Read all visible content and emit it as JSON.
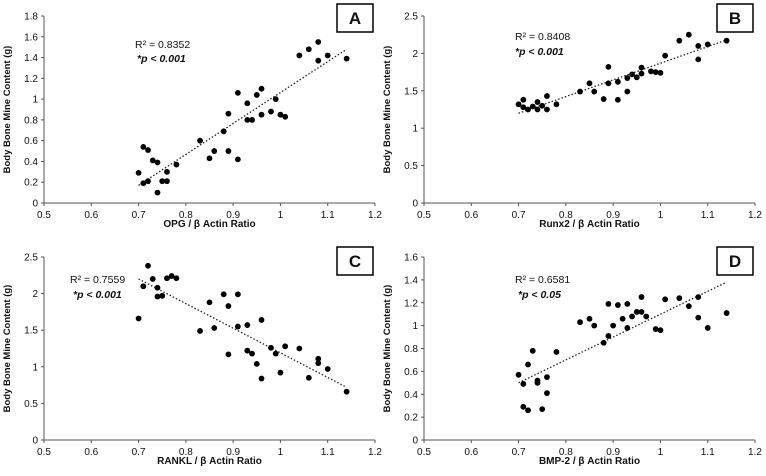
{
  "chart_data": [
    {
      "type": "scatter",
      "panel_label": "A",
      "xlabel": "OPG / β Actin Ratio",
      "ylabel": "Body Bone Mine Content (g)",
      "xlim": [
        0.5,
        1.2
      ],
      "ylim": [
        0,
        1.8
      ],
      "x_ticks": [
        "0.5",
        "0.6",
        "0.7",
        "0.8",
        "0.9",
        "1",
        "1.1",
        "1.2"
      ],
      "y_ticks": [
        "0",
        "0.2",
        "0.4",
        "0.6",
        "0.8",
        "1",
        "1.2",
        "1.4",
        "1.6",
        "1.8"
      ],
      "r_squared": "R² = 0.8352",
      "p_value": "*p < 0.001",
      "trendline": {
        "x": [
          0.7,
          1.14
        ],
        "y": [
          0.17,
          1.48
        ]
      },
      "points": [
        [
          0.7,
          0.29
        ],
        [
          0.71,
          0.54
        ],
        [
          0.71,
          0.19
        ],
        [
          0.72,
          0.51
        ],
        [
          0.72,
          0.21
        ],
        [
          0.73,
          0.41
        ],
        [
          0.74,
          0.39
        ],
        [
          0.74,
          0.1
        ],
        [
          0.75,
          0.21
        ],
        [
          0.76,
          0.3
        ],
        [
          0.76,
          0.21
        ],
        [
          0.78,
          0.37
        ],
        [
          0.83,
          0.6
        ],
        [
          0.85,
          0.43
        ],
        [
          0.86,
          0.5
        ],
        [
          0.88,
          0.69
        ],
        [
          0.89,
          0.86
        ],
        [
          0.89,
          0.5
        ],
        [
          0.91,
          0.42
        ],
        [
          0.91,
          1.06
        ],
        [
          0.93,
          0.8
        ],
        [
          0.93,
          0.96
        ],
        [
          0.94,
          0.8
        ],
        [
          0.95,
          1.04
        ],
        [
          0.96,
          0.85
        ],
        [
          0.96,
          1.1
        ],
        [
          0.98,
          0.88
        ],
        [
          0.99,
          1.0
        ],
        [
          1.0,
          0.85
        ],
        [
          1.01,
          0.83
        ],
        [
          1.04,
          1.42
        ],
        [
          1.06,
          1.48
        ],
        [
          1.08,
          1.55
        ],
        [
          1.08,
          1.37
        ],
        [
          1.1,
          1.42
        ],
        [
          1.14,
          1.39
        ]
      ]
    },
    {
      "type": "scatter",
      "panel_label": "B",
      "xlabel": "Runx2 / β Actin Ratio",
      "ylabel": "Body Bone Mine Content (g)",
      "xlim": [
        0.5,
        1.2
      ],
      "ylim": [
        0,
        2.5
      ],
      "x_ticks": [
        "0.5",
        "0.6",
        "0.7",
        "0.8",
        "0.9",
        "1",
        "1.1",
        "1.2"
      ],
      "y_ticks": [
        "0",
        "0.5",
        "1",
        "1.5",
        "2",
        "2.5"
      ],
      "r_squared": "R² = 0.8408",
      "p_value": "*p < 0.001",
      "trendline": {
        "x": [
          0.7,
          1.14
        ],
        "y": [
          1.2,
          2.18
        ]
      },
      "points": [
        [
          0.7,
          1.32
        ],
        [
          0.71,
          1.38
        ],
        [
          0.71,
          1.28
        ],
        [
          0.72,
          1.25
        ],
        [
          0.73,
          1.29
        ],
        [
          0.74,
          1.25
        ],
        [
          0.74,
          1.35
        ],
        [
          0.75,
          1.3
        ],
        [
          0.76,
          1.25
        ],
        [
          0.76,
          1.43
        ],
        [
          0.78,
          1.32
        ],
        [
          0.83,
          1.49
        ],
        [
          0.85,
          1.6
        ],
        [
          0.86,
          1.49
        ],
        [
          0.88,
          1.39
        ],
        [
          0.89,
          1.82
        ],
        [
          0.89,
          1.6
        ],
        [
          0.91,
          1.38
        ],
        [
          0.91,
          1.62
        ],
        [
          0.93,
          1.49
        ],
        [
          0.93,
          1.67
        ],
        [
          0.94,
          1.72
        ],
        [
          0.95,
          1.68
        ],
        [
          0.96,
          1.81
        ],
        [
          0.96,
          1.73
        ],
        [
          0.98,
          1.76
        ],
        [
          0.99,
          1.75
        ],
        [
          1.0,
          1.74
        ],
        [
          1.01,
          1.97
        ],
        [
          1.04,
          2.17
        ],
        [
          1.06,
          2.25
        ],
        [
          1.08,
          2.1
        ],
        [
          1.08,
          1.92
        ],
        [
          1.1,
          2.12
        ],
        [
          1.14,
          2.17
        ]
      ]
    },
    {
      "type": "scatter",
      "panel_label": "C",
      "xlabel": "RANKL / β Actin Ratio",
      "ylabel": "Body Bone Mine Content (g)",
      "xlim": [
        0.5,
        1.2
      ],
      "ylim": [
        0,
        2.5
      ],
      "x_ticks": [
        "0.5",
        "0.6",
        "0.7",
        "0.8",
        "0.9",
        "1",
        "1.1",
        "1.2"
      ],
      "y_ticks": [
        "0",
        "0.5",
        "1",
        "1.5",
        "2",
        "2.5"
      ],
      "r_squared": "R² = 0.7559",
      "p_value": "*p < 0.001",
      "trendline": {
        "x": [
          0.7,
          1.14
        ],
        "y": [
          2.2,
          0.72
        ]
      },
      "points": [
        [
          0.7,
          1.66
        ],
        [
          0.71,
          2.1
        ],
        [
          0.72,
          2.38
        ],
        [
          0.73,
          2.2
        ],
        [
          0.74,
          1.96
        ],
        [
          0.74,
          2.08
        ],
        [
          0.75,
          1.97
        ],
        [
          0.76,
          2.21
        ],
        [
          0.77,
          2.24
        ],
        [
          0.78,
          2.21
        ],
        [
          0.83,
          1.49
        ],
        [
          0.85,
          1.88
        ],
        [
          0.86,
          1.53
        ],
        [
          0.88,
          1.99
        ],
        [
          0.89,
          1.17
        ],
        [
          0.89,
          1.83
        ],
        [
          0.91,
          1.55
        ],
        [
          0.91,
          1.99
        ],
        [
          0.93,
          1.22
        ],
        [
          0.93,
          1.57
        ],
        [
          0.94,
          1.18
        ],
        [
          0.95,
          1.04
        ],
        [
          0.96,
          1.64
        ],
        [
          0.96,
          0.84
        ],
        [
          0.98,
          1.26
        ],
        [
          0.99,
          1.18
        ],
        [
          1.0,
          0.92
        ],
        [
          1.01,
          1.28
        ],
        [
          1.04,
          1.25
        ],
        [
          1.06,
          0.85
        ],
        [
          1.08,
          1.11
        ],
        [
          1.08,
          1.05
        ],
        [
          1.1,
          0.97
        ],
        [
          1.14,
          0.66
        ]
      ]
    },
    {
      "type": "scatter",
      "panel_label": "D",
      "xlabel": "BMP-2 / β Actin Ratio",
      "ylabel": "Body Bone Mine Content (g)",
      "xlim": [
        0.5,
        1.2
      ],
      "ylim": [
        0,
        1.6
      ],
      "x_ticks": [
        "0.5",
        "0.6",
        "0.7",
        "0.8",
        "0.9",
        "1",
        "1.1",
        "1.2"
      ],
      "y_ticks": [
        "0",
        "0.2",
        "0.4",
        "0.6",
        "0.8",
        "1",
        "1.2",
        "1.4",
        "1.6"
      ],
      "r_squared": "R² = 0.6581",
      "p_value": "*p < 0.05",
      "trendline": {
        "x": [
          0.7,
          1.14
        ],
        "y": [
          0.5,
          1.38
        ]
      },
      "points": [
        [
          0.7,
          0.57
        ],
        [
          0.71,
          0.49
        ],
        [
          0.71,
          0.29
        ],
        [
          0.72,
          0.66
        ],
        [
          0.72,
          0.26
        ],
        [
          0.73,
          0.78
        ],
        [
          0.74,
          0.52
        ],
        [
          0.74,
          0.5
        ],
        [
          0.75,
          0.27
        ],
        [
          0.76,
          0.55
        ],
        [
          0.76,
          0.41
        ],
        [
          0.78,
          0.77
        ],
        [
          0.83,
          1.03
        ],
        [
          0.85,
          1.06
        ],
        [
          0.86,
          1.0
        ],
        [
          0.88,
          0.85
        ],
        [
          0.89,
          0.91
        ],
        [
          0.89,
          1.19
        ],
        [
          0.9,
          1.0
        ],
        [
          0.91,
          1.18
        ],
        [
          0.92,
          1.06
        ],
        [
          0.93,
          0.98
        ],
        [
          0.93,
          1.19
        ],
        [
          0.94,
          1.08
        ],
        [
          0.95,
          1.12
        ],
        [
          0.96,
          1.12
        ],
        [
          0.96,
          1.25
        ],
        [
          0.97,
          1.08
        ],
        [
          0.99,
          0.97
        ],
        [
          1.0,
          0.96
        ],
        [
          1.01,
          1.23
        ],
        [
          1.04,
          1.24
        ],
        [
          1.06,
          1.17
        ],
        [
          1.08,
          1.25
        ],
        [
          1.08,
          1.07
        ],
        [
          1.1,
          0.98
        ],
        [
          1.14,
          1.11
        ]
      ]
    }
  ]
}
